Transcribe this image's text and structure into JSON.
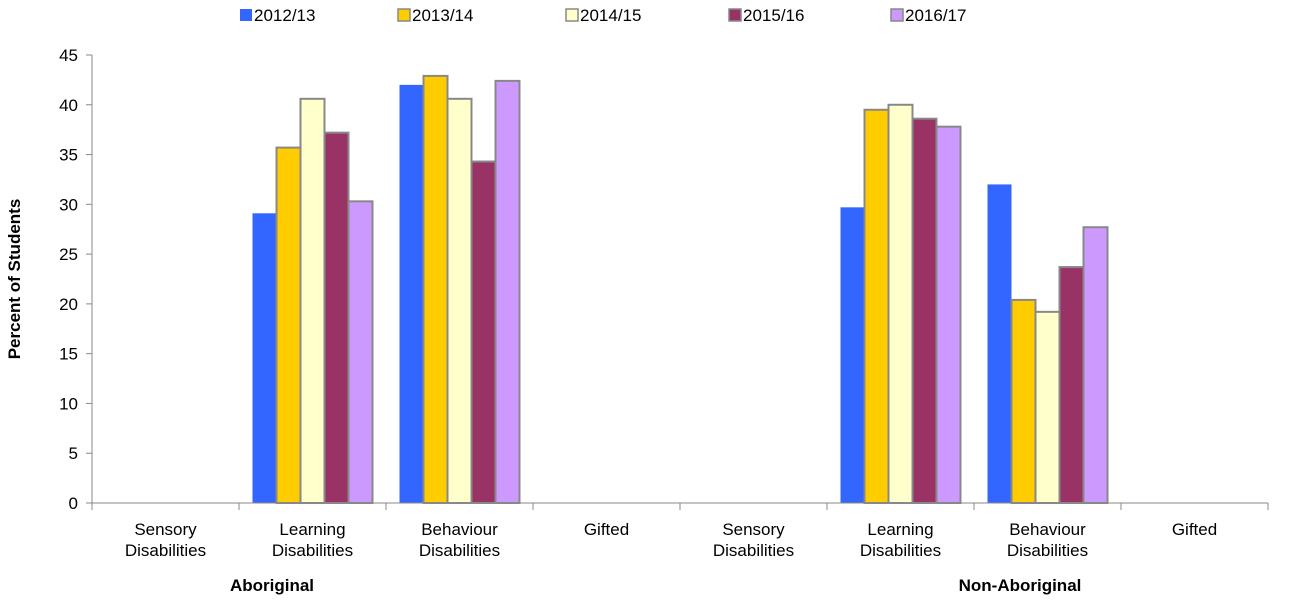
{
  "chart_data": {
    "type": "bar",
    "ylabel": "Percent of Students",
    "ylim": [
      0,
      45
    ],
    "yticks": [
      0,
      5,
      10,
      15,
      20,
      25,
      30,
      35,
      40,
      45
    ],
    "legend_position": "top",
    "groups": [
      {
        "label": "Aboriginal",
        "categories": [
          "Sensory Disabilities",
          "Learning Disabilities",
          "Behaviour Disabilities",
          "Gifted"
        ]
      },
      {
        "label": "Non-Aboriginal",
        "categories": [
          "Sensory Disabilities",
          "Learning Disabilities",
          "Behaviour Disabilities",
          "Gifted"
        ]
      }
    ],
    "categories": [
      [
        "Sensory",
        "Disabilities"
      ],
      [
        "Learning",
        "Disabilities"
      ],
      [
        "Behaviour",
        "Disabilities"
      ],
      [
        "Gifted"
      ],
      [
        "Sensory",
        "Disabilities"
      ],
      [
        "Learning",
        "Disabilities"
      ],
      [
        "Behaviour",
        "Disabilities"
      ],
      [
        "Gifted"
      ]
    ],
    "series": [
      {
        "name": "2012/13",
        "color": "#3366ff",
        "values": [
          0,
          29.1,
          42.0,
          0,
          0,
          29.7,
          32.0,
          0
        ]
      },
      {
        "name": "2013/14",
        "color": "#ffcc00",
        "values": [
          0,
          35.7,
          42.9,
          0,
          0,
          39.5,
          20.4,
          0
        ]
      },
      {
        "name": "2014/15",
        "color": "#ffffcc",
        "values": [
          0,
          40.6,
          40.6,
          0,
          0,
          40.0,
          19.2,
          0
        ]
      },
      {
        "name": "2015/16",
        "color": "#993366",
        "values": [
          0,
          37.2,
          34.3,
          0,
          0,
          38.6,
          23.7,
          0
        ]
      },
      {
        "name": "2016/17",
        "color": "#cc99ff",
        "values": [
          0,
          30.3,
          42.4,
          0,
          0,
          37.8,
          27.7,
          0
        ]
      }
    ]
  }
}
